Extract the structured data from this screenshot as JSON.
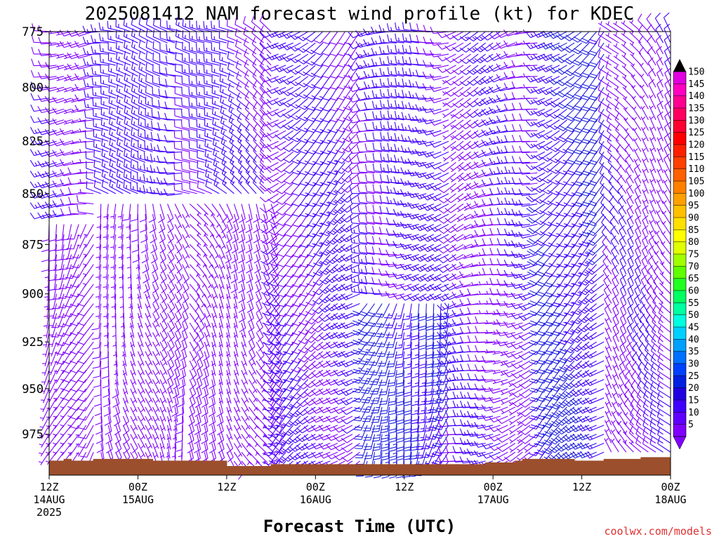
{
  "chart_data": {
    "type": "wind_barb_time_height",
    "title": "2025081412 NAM forecast wind profile (kt) for KDEC",
    "xlabel": "Forecast Time (UTC)",
    "ylabel": "",
    "credit": "coolwx.com/models",
    "units": "kt",
    "y_axis": {
      "label": "",
      "range": [
        775,
        1000
      ],
      "reversed": true,
      "ticks": [
        775,
        800,
        825,
        850,
        875,
        900,
        925,
        950,
        975
      ]
    },
    "x_axis": {
      "range_hours": [
        0,
        84
      ],
      "ticks": [
        {
          "hour": 0,
          "line1": "12Z",
          "line2": "14AUG",
          "line3": "2025"
        },
        {
          "hour": 12,
          "line1": "00Z",
          "line2": "15AUG",
          "line3": ""
        },
        {
          "hour": 24,
          "line1": "12Z",
          "line2": "",
          "line3": ""
        },
        {
          "hour": 36,
          "line1": "00Z",
          "line2": "16AUG",
          "line3": ""
        },
        {
          "hour": 48,
          "line1": "12Z",
          "line2": "",
          "line3": ""
        },
        {
          "hour": 60,
          "line1": "00Z",
          "line2": "17AUG",
          "line3": ""
        },
        {
          "hour": 72,
          "line1": "12Z",
          "line2": "",
          "line3": ""
        },
        {
          "hour": 84,
          "line1": "00Z",
          "line2": "18AUG",
          "line3": ""
        }
      ]
    },
    "levels_hpa": [
      775,
      780,
      785,
      790,
      795,
      800,
      805,
      810,
      815,
      820,
      825,
      830,
      835,
      840,
      845,
      850,
      855,
      860,
      865,
      870,
      875,
      880,
      885,
      890,
      895,
      900,
      905,
      910,
      915,
      920,
      925,
      930,
      935,
      940,
      945,
      950,
      955,
      960,
      965,
      970,
      975,
      980,
      985,
      990
    ],
    "forecast_hours": [
      0,
      1,
      2,
      3,
      4,
      5,
      6,
      7,
      8,
      9,
      10,
      11,
      12,
      13,
      14,
      15,
      16,
      17,
      18,
      19,
      20,
      21,
      22,
      23,
      24,
      25,
      26,
      27,
      28,
      29,
      30,
      31,
      32,
      33,
      34,
      35,
      36,
      37,
      38,
      39,
      40,
      41,
      42,
      43,
      44,
      45,
      46,
      47,
      48,
      49,
      50,
      51,
      52,
      53,
      54,
      55,
      56,
      57,
      58,
      59,
      60,
      61,
      62,
      63,
      64,
      65,
      66,
      67,
      68,
      69,
      70,
      71,
      72,
      73,
      74,
      75,
      76,
      77,
      78,
      79,
      80,
      81,
      82,
      83,
      84
    ],
    "approx_wind_regimes": [
      {
        "hours": [
          0,
          6
        ],
        "levels": [
          775,
          860
        ],
        "direction_deg": 270,
        "speed_kt": 10
      },
      {
        "hours": [
          0,
          6
        ],
        "levels": [
          860,
          990
        ],
        "direction_deg": 200,
        "speed_kt": 7
      },
      {
        "hours": [
          6,
          18
        ],
        "levels": [
          775,
          850
        ],
        "direction_deg": 280,
        "speed_kt": 14
      },
      {
        "hours": [
          6,
          18
        ],
        "levels": [
          850,
          990
        ],
        "direction_deg": 170,
        "speed_kt": 7
      },
      {
        "hours": [
          18,
          30
        ],
        "levels": [
          775,
          850
        ],
        "direction_deg": 300,
        "speed_kt": 12
      },
      {
        "hours": [
          18,
          30
        ],
        "levels": [
          850,
          990
        ],
        "direction_deg": 150,
        "speed_kt": 8
      },
      {
        "hours": [
          30,
          42
        ],
        "levels": [
          775,
          990
        ],
        "direction_deg": 230,
        "speed_kt": 12
      },
      {
        "hours": [
          42,
          54
        ],
        "levels": [
          775,
          900
        ],
        "direction_deg": 260,
        "speed_kt": 13
      },
      {
        "hours": [
          42,
          54
        ],
        "levels": [
          900,
          990
        ],
        "direction_deg": 200,
        "speed_kt": 20
      },
      {
        "hours": [
          54,
          66
        ],
        "levels": [
          775,
          990
        ],
        "direction_deg": 250,
        "speed_kt": 10
      },
      {
        "hours": [
          66,
          75
        ],
        "levels": [
          775,
          990
        ],
        "direction_deg": 230,
        "speed_kt": 18
      },
      {
        "hours": [
          75,
          84
        ],
        "levels": [
          775,
          990
        ],
        "direction_deg": 320,
        "speed_kt": 9
      }
    ],
    "terrain": {
      "color": "#9c4f2c",
      "surface_hpa": [
        {
          "hour": 0,
          "p": 990
        },
        {
          "hour": 1.5,
          "p": 990
        },
        {
          "hour": 2,
          "p": 989
        },
        {
          "hour": 3,
          "p": 990
        },
        {
          "hour": 6,
          "p": 989
        },
        {
          "hour": 13,
          "p": 989
        },
        {
          "hour": 14,
          "p": 990
        },
        {
          "hour": 23,
          "p": 990
        },
        {
          "hour": 24,
          "p": 993
        },
        {
          "hour": 29,
          "p": 993
        },
        {
          "hour": 30,
          "p": 992
        },
        {
          "hour": 56,
          "p": 992
        },
        {
          "hour": 59,
          "p": 991
        },
        {
          "hour": 63,
          "p": 990
        },
        {
          "hour": 64,
          "p": 989
        },
        {
          "hour": 71,
          "p": 990
        },
        {
          "hour": 74,
          "p": 990
        },
        {
          "hour": 75,
          "p": 989
        },
        {
          "hour": 80,
          "p": 988
        },
        {
          "hour": 84,
          "p": 988
        }
      ]
    }
  },
  "colorbar": {
    "min": 5,
    "max": 150,
    "labels": [
      "150",
      "145",
      "140",
      "135",
      "130",
      "125",
      "120",
      "115",
      "110",
      "105",
      "100",
      "95",
      "90",
      "85",
      "80",
      "75",
      "70",
      "65",
      "60",
      "55",
      "50",
      "45",
      "40",
      "35",
      "30",
      "25",
      "20",
      "15",
      "10",
      "5"
    ],
    "colors": [
      "#e000e0",
      "#ff00c0",
      "#ff0090",
      "#ff0060",
      "#ff0030",
      "#ff0000",
      "#ff2000",
      "#ff4000",
      "#ff6000",
      "#ff8000",
      "#ffa000",
      "#ffc000",
      "#ffe000",
      "#ffff00",
      "#e0ff00",
      "#a0ff00",
      "#60ff00",
      "#20ff20",
      "#00ff60",
      "#00ffa0",
      "#00ffe0",
      "#00d0ff",
      "#00a0ff",
      "#0070ff",
      "#0040ff",
      "#0020e0",
      "#2000e0",
      "#4000ff",
      "#6000ff",
      "#8000ff"
    ]
  },
  "barb_colors": {
    "weak": "#8000ff",
    "moderate": "#4000ff",
    "strong": "#2020e0"
  }
}
